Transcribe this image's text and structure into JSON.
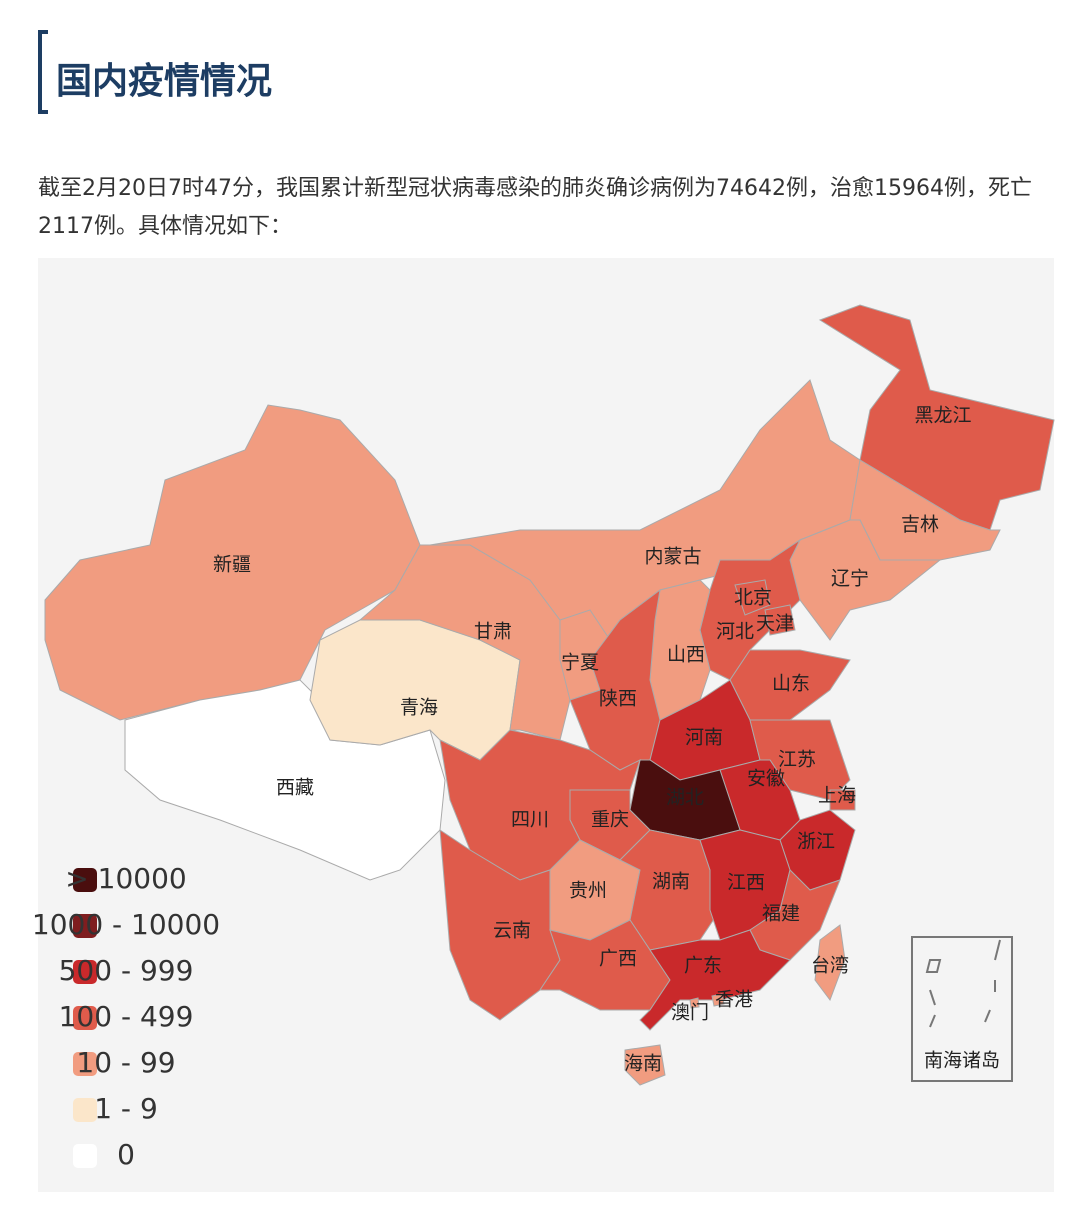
{
  "header": {
    "title": "国内疫情情况"
  },
  "intro": "截至2月20日7时47分，我国累计新型冠状病毒感染的肺炎确诊病例为74642例，治愈15964例，死亡2117例。具体情况如下：",
  "map": {
    "legend": [
      {
        "label": "> 10000",
        "color": "#4a0e0e"
      },
      {
        "label": "1000 - 10000",
        "color": "#7f1d1f"
      },
      {
        "label": "500 - 999",
        "color": "#c9292b"
      },
      {
        "label": "100 - 499",
        "color": "#df5b4b"
      },
      {
        "label": "10 - 99",
        "color": "#f19c80"
      },
      {
        "label": "1 - 9",
        "color": "#fbe6ca"
      },
      {
        "label": "0",
        "color": "#ffffff"
      }
    ],
    "regions": [
      {
        "name": "新疆",
        "level": 4
      },
      {
        "name": "西藏",
        "level": 6
      },
      {
        "name": "青海",
        "level": 5
      },
      {
        "name": "甘肃",
        "level": 4
      },
      {
        "name": "内蒙古",
        "level": 4
      },
      {
        "name": "黑龙江",
        "level": 3
      },
      {
        "name": "吉林",
        "level": 4
      },
      {
        "name": "辽宁",
        "level": 4
      },
      {
        "name": "河北",
        "level": 3
      },
      {
        "name": "北京",
        "level": 3
      },
      {
        "name": "天津",
        "level": 3
      },
      {
        "name": "山西",
        "level": 4
      },
      {
        "name": "宁夏",
        "level": 4
      },
      {
        "name": "陕西",
        "level": 3
      },
      {
        "name": "山东",
        "level": 3
      },
      {
        "name": "河南",
        "level": 2
      },
      {
        "name": "江苏",
        "level": 3
      },
      {
        "name": "安徽",
        "level": 2
      },
      {
        "name": "上海",
        "level": 3
      },
      {
        "name": "浙江",
        "level": 2
      },
      {
        "name": "湖北",
        "level": 0
      },
      {
        "name": "重庆",
        "level": 3
      },
      {
        "name": "四川",
        "level": 3
      },
      {
        "name": "贵州",
        "level": 4
      },
      {
        "name": "湖南",
        "level": 3
      },
      {
        "name": "江西",
        "level": 2
      },
      {
        "name": "福建",
        "level": 3
      },
      {
        "name": "云南",
        "level": 3
      },
      {
        "name": "广西",
        "level": 3
      },
      {
        "name": "广东",
        "level": 2
      },
      {
        "name": "海南",
        "level": 4
      },
      {
        "name": "台湾",
        "level": 4
      },
      {
        "name": "香港",
        "level": 4
      },
      {
        "name": "澳门",
        "level": 4
      }
    ],
    "inset": "南海诸岛"
  }
}
